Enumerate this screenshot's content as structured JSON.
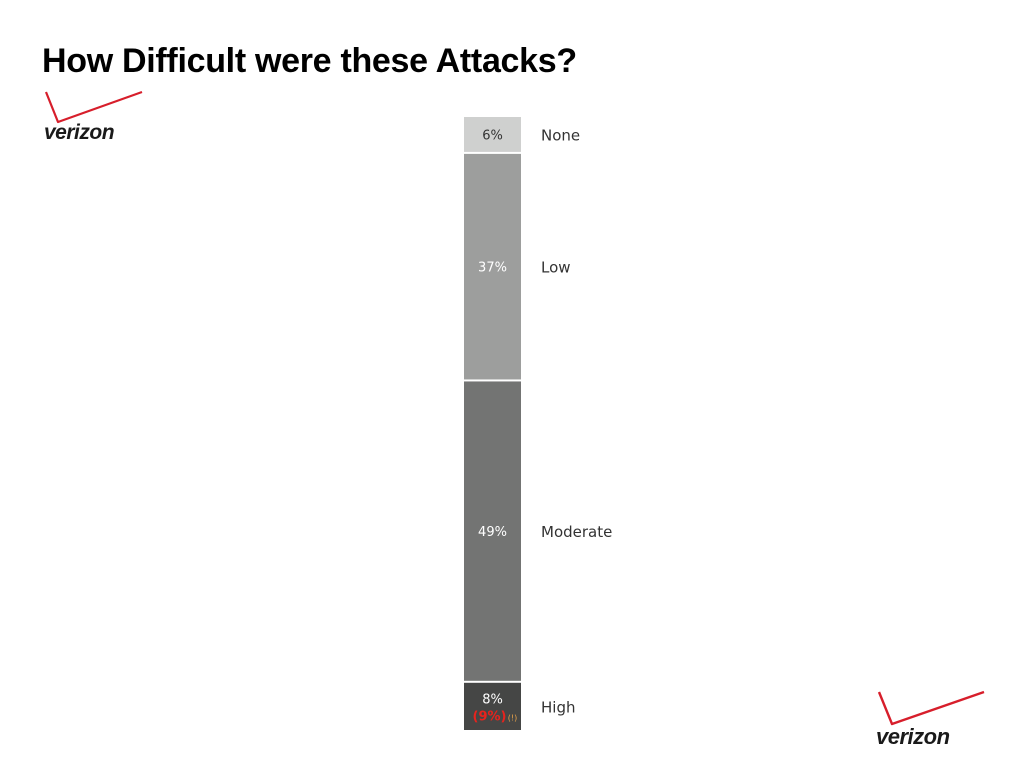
{
  "slide": {
    "title": "How Difficult were these Attacks?",
    "logo_text": "verizon"
  },
  "colors": {
    "none": "#cfd0cf",
    "low": "#9d9e9d",
    "moderate": "#737473",
    "high": "#454645",
    "label_dark": "#333333",
    "label_light": "#ffffff",
    "high_alt": "#e8231d",
    "high_note": "#e8a24a",
    "logo_check": "#d71e2b"
  },
  "chart_data": {
    "type": "bar",
    "stacked": true,
    "orientation": "vertical",
    "unit": "%",
    "segments": [
      {
        "category": "None",
        "value": 6,
        "label": "6%"
      },
      {
        "category": "Low",
        "value": 37,
        "label": "37%"
      },
      {
        "category": "Moderate",
        "value": 49,
        "label": "49%"
      },
      {
        "category": "High",
        "value": 8,
        "label": "8%",
        "alt_label": "(9%)",
        "note": "(!)"
      }
    ]
  }
}
